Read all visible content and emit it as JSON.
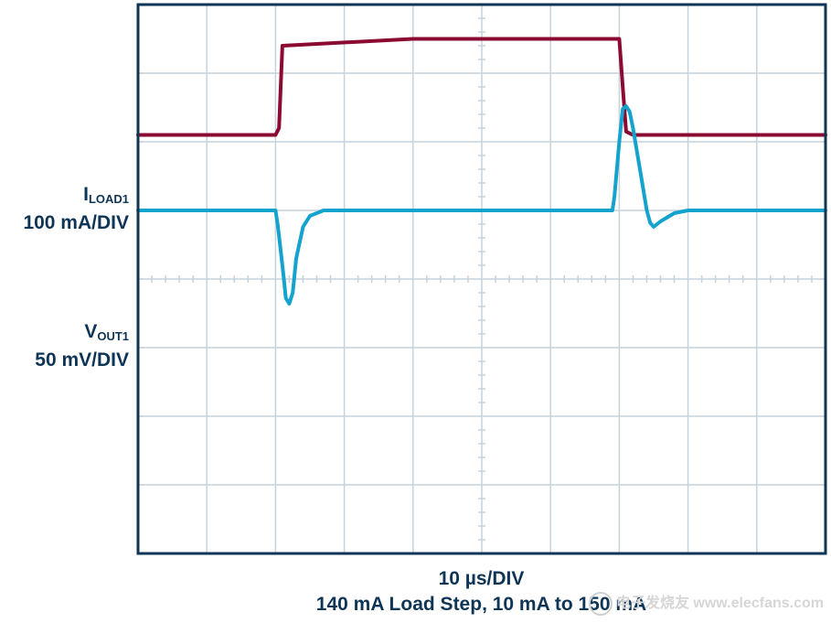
{
  "chart_data": {
    "type": "line",
    "title": "",
    "xlabel": "10 µs/DIV",
    "caption": "140 mA Load Step, 10 mA to 150 mA",
    "grid": true,
    "x_divisions": 10,
    "y_divisions": 8,
    "x_unit": "µs",
    "x_per_div": 10,
    "series": [
      {
        "label_main": "I",
        "label_sub": "LOAD1",
        "scale": "100 mA/DIV",
        "unit": "mA",
        "per_div": 100,
        "color": "#8b0a32",
        "ref_div": 2.0,
        "x": [
          0,
          20,
          20.5,
          21,
          40,
          60,
          69.3,
          70,
          70.5,
          71,
          72,
          75,
          80,
          90,
          100
        ],
        "y": [
          10,
          10,
          20,
          140,
          150,
          150,
          150,
          150,
          80,
          15,
          10,
          10,
          10,
          10,
          10
        ]
      },
      {
        "label_main": "V",
        "label_sub": "OUT1",
        "scale": "50 mV/DIV",
        "unit": "mV",
        "per_div": 50,
        "color": "#14a3cc",
        "ref_div": 3.0,
        "x": [
          0,
          20,
          20.3,
          21,
          21.5,
          22,
          22.5,
          23,
          24,
          25,
          26,
          27,
          30,
          45,
          69,
          69.3,
          70,
          70.5,
          71,
          71.5,
          72,
          73,
          74,
          74.5,
          75,
          76,
          78,
          80,
          90,
          100
        ],
        "y": [
          0,
          0,
          -10,
          -40,
          -64,
          -68,
          -60,
          -35,
          -12,
          -4,
          -2,
          0,
          0,
          0,
          0,
          10,
          50,
          74,
          76,
          72,
          60,
          30,
          0,
          -9,
          -12,
          -8,
          -2,
          0,
          0,
          0
        ]
      }
    ],
    "watermark": "电子发烧友 www.elecfans.com"
  }
}
